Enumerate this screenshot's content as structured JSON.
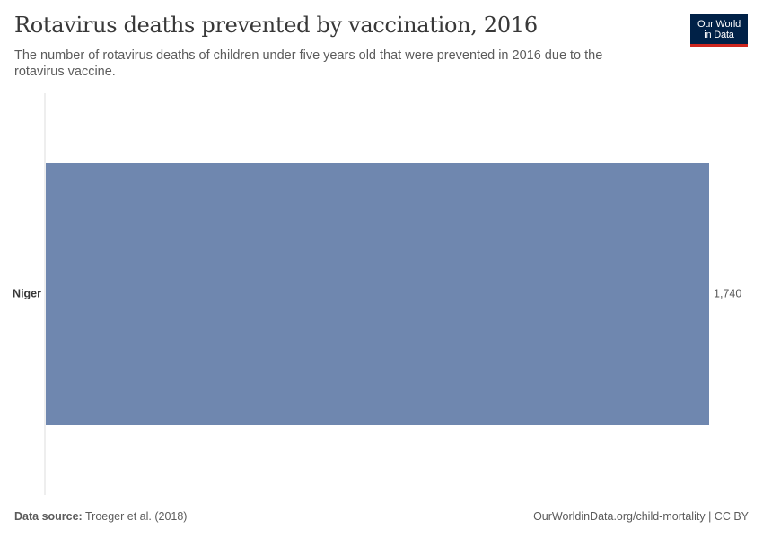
{
  "header": {
    "title": "Rotavirus deaths prevented by vaccination, 2016",
    "subtitle": "The number of rotavirus deaths of children under five years old that were prevented in 2016 due to the rotavirus vaccine."
  },
  "logo": {
    "line1": "Our World",
    "line2": "in Data"
  },
  "footer": {
    "source_label": "Data source:",
    "source_value": "Troeger et al. (2018)",
    "url": "OurWorldinData.org/child-mortality",
    "separator": "|",
    "license": "CC BY"
  },
  "colors": {
    "bar": "#6f87af",
    "axis": "#dddddd",
    "text": "#5b5b5b",
    "logo_bg": "#002147",
    "logo_accent": "#ce261e"
  },
  "chart_data": {
    "type": "bar",
    "orientation": "horizontal",
    "categories": [
      "Niger"
    ],
    "values": [
      1740
    ],
    "value_labels": [
      "1,740"
    ],
    "xlim": [
      0,
      1740
    ],
    "grid": false
  }
}
